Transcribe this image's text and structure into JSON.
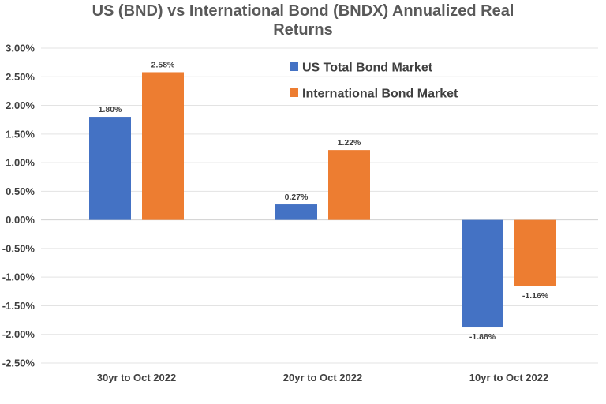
{
  "chart_data": {
    "type": "bar",
    "title_lines": [
      "US (BND) vs International Bond (BNDX) Annualized Real",
      "Returns"
    ],
    "categories": [
      "30yr to Oct 2022",
      "20yr to Oct 2022",
      "10yr to Oct 2022"
    ],
    "series": [
      {
        "name": "US Total Bond Market",
        "color": "#4472C4",
        "values": [
          1.8,
          0.27,
          -1.88
        ],
        "data_labels": [
          "1.80%",
          "0.27%",
          "-1.88%"
        ]
      },
      {
        "name": "International Bond Market",
        "color": "#ED7D31",
        "values": [
          2.58,
          1.22,
          -1.16
        ],
        "data_labels": [
          "2.58%",
          "1.22%",
          "-1.16%"
        ]
      }
    ],
    "ylim": [
      -2.5,
      3.0
    ],
    "y_ticks": [
      3.0,
      2.5,
      2.0,
      1.5,
      1.0,
      0.5,
      0.0,
      -0.5,
      -1.0,
      -1.5,
      -2.0,
      -2.5
    ],
    "y_tick_labels": [
      "3.00%",
      "2.50%",
      "2.00%",
      "1.50%",
      "1.00%",
      "0.50%",
      "0.00%",
      "-0.50%",
      "-1.00%",
      "-1.50%",
      "-2.00%",
      "-2.50%"
    ],
    "grid": true,
    "legend_position": "top-center"
  }
}
